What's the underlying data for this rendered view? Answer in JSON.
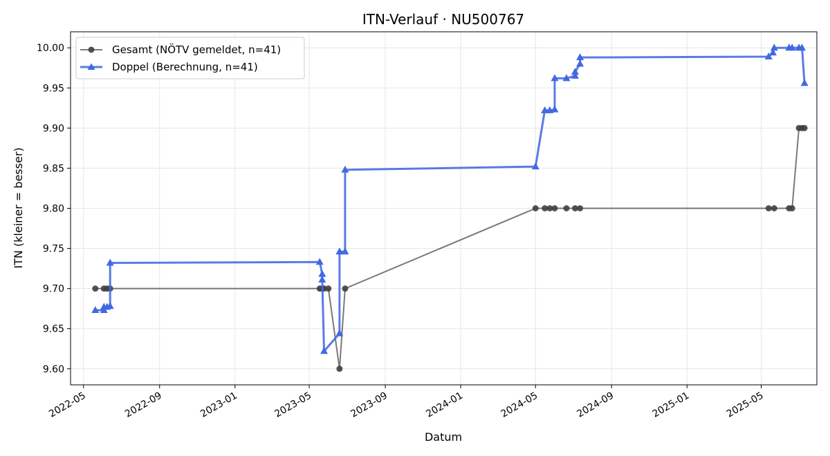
{
  "chart_data": {
    "type": "line",
    "title": "ITN-Verlauf · NU500767",
    "xlabel": "Datum",
    "ylabel": "ITN  (kleiner = besser)",
    "x_ticks": [
      "2022-05",
      "2022-09",
      "2023-01",
      "2023-05",
      "2023-09",
      "2024-01",
      "2024-05",
      "2024-09",
      "2025-01",
      "2025-05"
    ],
    "y_ticks": [
      "9.60",
      "9.65",
      "9.70",
      "9.75",
      "9.80",
      "9.85",
      "9.90",
      "9.95",
      "10.00"
    ],
    "ylim": [
      9.58,
      10.02
    ],
    "xlim": [
      "2022-04-10",
      "2025-07-30"
    ],
    "grid": true,
    "legend_position": "top-left",
    "series": [
      {
        "name": "Gesamt (NÖTV gemeldet, n=41)",
        "color": "#404040",
        "marker": "circle",
        "points": [
          [
            "2022-05-20",
            9.7
          ],
          [
            "2022-06-03",
            9.7
          ],
          [
            "2022-06-08",
            9.7
          ],
          [
            "2022-06-13",
            9.7
          ],
          [
            "2023-05-18",
            9.7
          ],
          [
            "2023-05-22",
            9.7
          ],
          [
            "2023-05-25",
            9.7
          ],
          [
            "2023-06-01",
            9.7
          ],
          [
            "2023-06-19",
            9.6
          ],
          [
            "2023-06-28",
            9.7
          ],
          [
            "2024-05-01",
            9.8
          ],
          [
            "2024-05-16",
            9.8
          ],
          [
            "2024-05-24",
            9.8
          ],
          [
            "2024-06-01",
            9.8
          ],
          [
            "2024-06-20",
            9.8
          ],
          [
            "2024-07-04",
            9.8
          ],
          [
            "2024-07-12",
            9.8
          ],
          [
            "2025-05-13",
            9.8
          ],
          [
            "2025-05-22",
            9.8
          ],
          [
            "2025-06-15",
            9.8
          ],
          [
            "2025-06-20",
            9.8
          ],
          [
            "2025-07-01",
            9.9
          ],
          [
            "2025-07-06",
            9.9
          ],
          [
            "2025-07-10",
            9.9
          ]
        ]
      },
      {
        "name": "Doppel (Berechnung, n=41)",
        "color": "#4169e1",
        "marker": "triangle",
        "points": [
          [
            "2022-05-20",
            9.673
          ],
          [
            "2022-06-03",
            9.673
          ],
          [
            "2022-06-03",
            9.677
          ],
          [
            "2022-06-08",
            9.677
          ],
          [
            "2022-06-13",
            9.678
          ],
          [
            "2022-06-13",
            9.732
          ],
          [
            "2023-05-18",
            9.733
          ],
          [
            "2023-05-22",
            9.718
          ],
          [
            "2023-05-22",
            9.711
          ],
          [
            "2023-05-25",
            9.622
          ],
          [
            "2023-06-19",
            9.644
          ],
          [
            "2023-06-19",
            9.746
          ],
          [
            "2023-06-28",
            9.746
          ],
          [
            "2023-06-28",
            9.848
          ],
          [
            "2024-05-01",
            9.852
          ],
          [
            "2024-05-16",
            9.922
          ],
          [
            "2024-05-24",
            9.922
          ],
          [
            "2024-06-01",
            9.923
          ],
          [
            "2024-06-01",
            9.962
          ],
          [
            "2024-06-20",
            9.962
          ],
          [
            "2024-07-04",
            9.965
          ],
          [
            "2024-07-04",
            9.97
          ],
          [
            "2024-07-12",
            9.98
          ],
          [
            "2024-07-12",
            9.988
          ],
          [
            "2025-05-13",
            9.989
          ],
          [
            "2025-05-20",
            9.994
          ],
          [
            "2025-05-22",
            10.0
          ],
          [
            "2025-06-15",
            10.0
          ],
          [
            "2025-06-20",
            10.0
          ],
          [
            "2025-07-01",
            10.0
          ],
          [
            "2025-07-06",
            10.0
          ],
          [
            "2025-07-10",
            9.956
          ]
        ]
      }
    ]
  }
}
